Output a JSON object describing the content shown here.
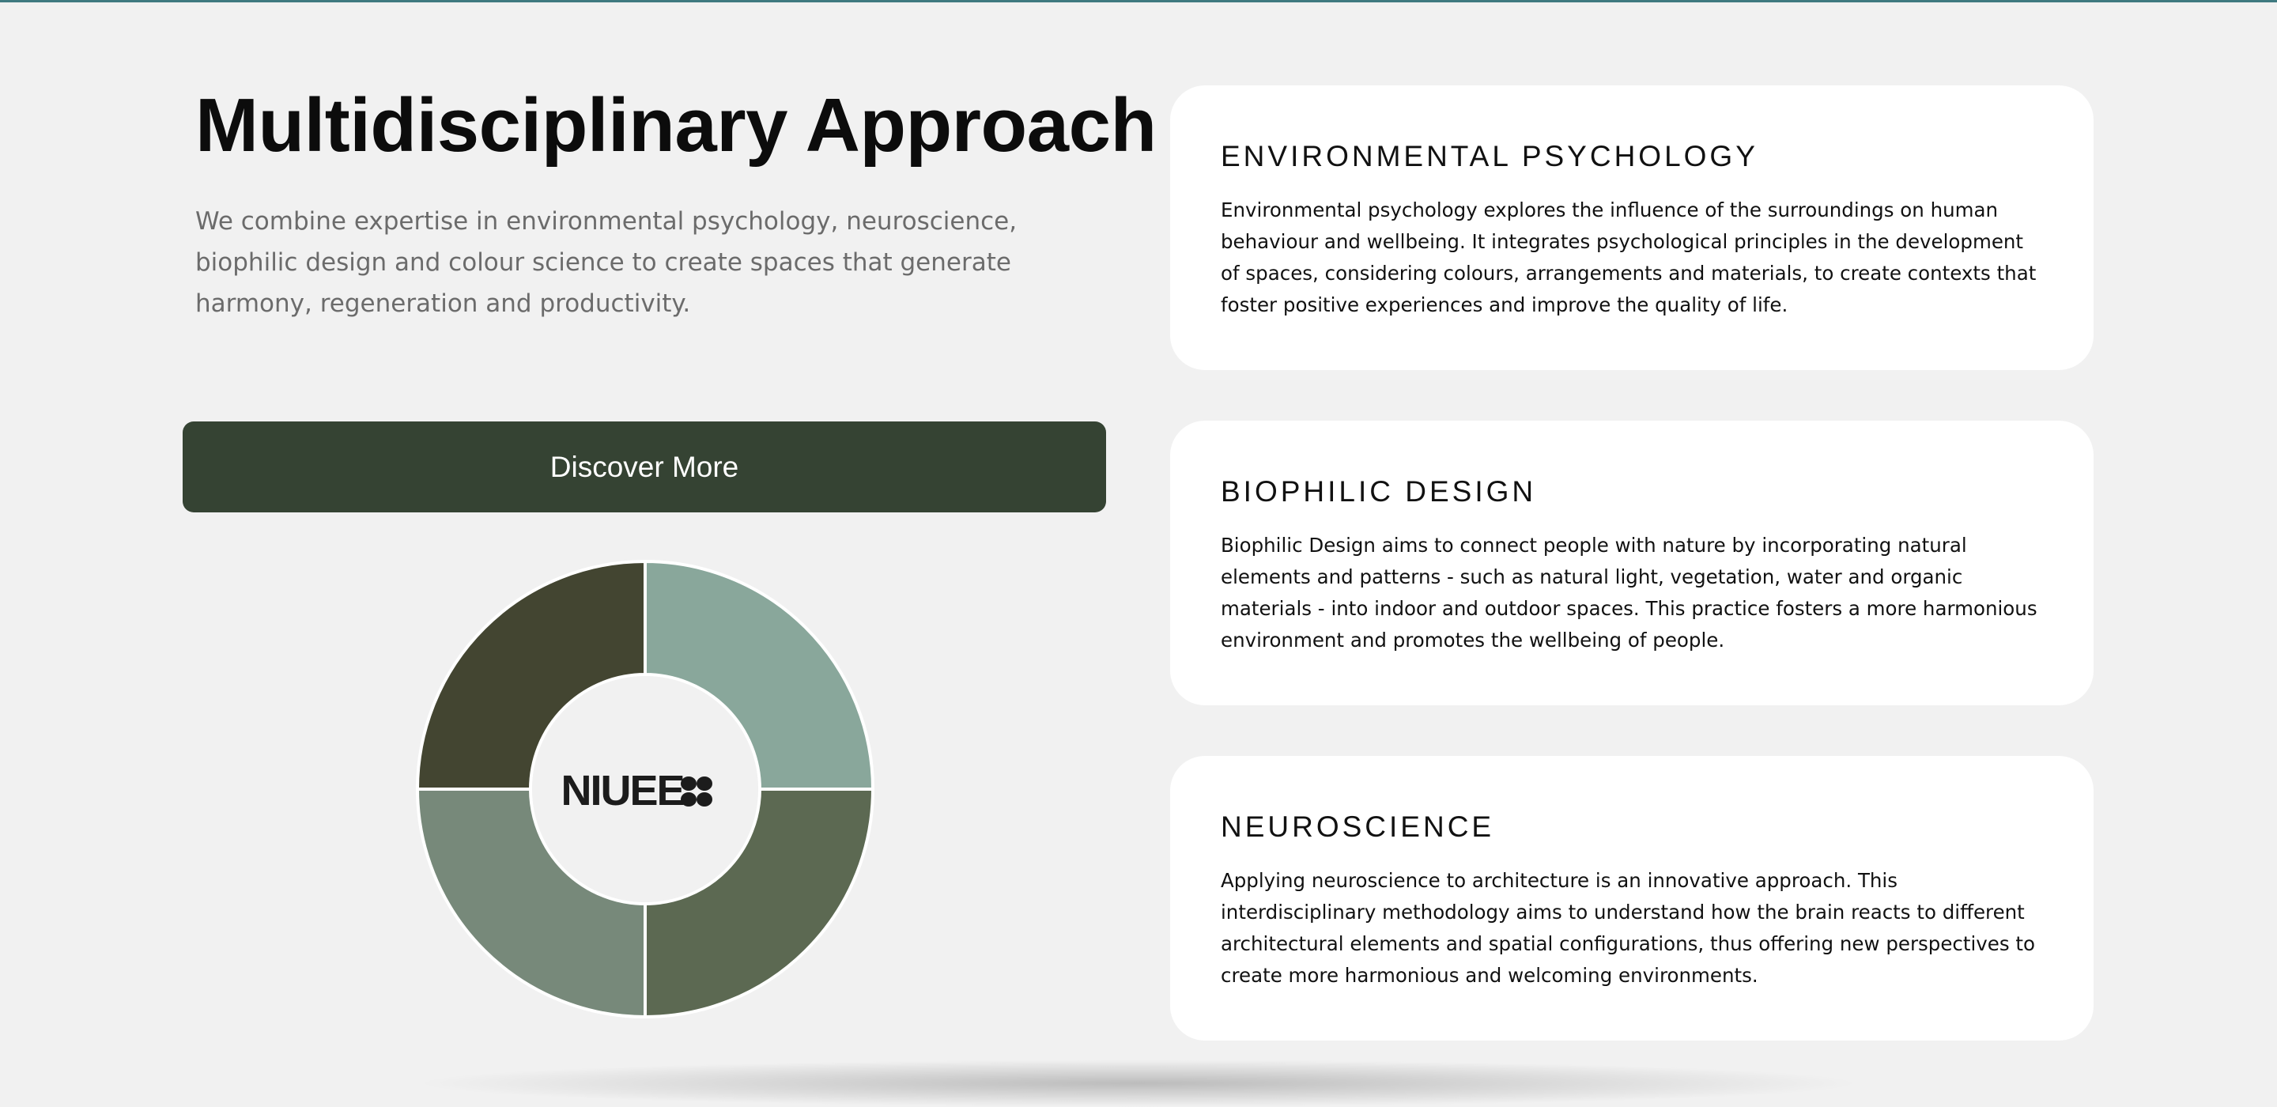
{
  "header": {
    "title": "Multidisciplinary Approach",
    "intro": "We combine expertise in environmental psychology, neuroscience, biophilic design and colour science to create spaces that generate harmony, regeneration and productivity."
  },
  "cta": {
    "label": "Discover More"
  },
  "diagram": {
    "logo_text": "NIUEE",
    "segments": [
      {
        "position": "top-right",
        "color": "#89a79b"
      },
      {
        "position": "bottom-right",
        "color": "#5c6952"
      },
      {
        "position": "bottom-left",
        "color": "#77897a"
      },
      {
        "position": "top-left",
        "color": "#434531"
      }
    ]
  },
  "cards": [
    {
      "title": "ENVIRONMENTAL PSYCHOLOGY",
      "text": "Environmental psychology explores the influence of the surroundings on human behaviour and wellbeing. It integrates psychological principles in the development of spaces, considering colours, arrangements and materials, to create contexts that foster positive experiences and improve the quality of life."
    },
    {
      "title": "BIOPHILIC DESIGN",
      "text": "Biophilic Design aims to connect people with nature by incorporating natural elements and patterns - such as natural light, vegetation, water and organic materials - into indoor and outdoor spaces. This practice fosters a more harmonious environment and promotes the wellbeing of people."
    },
    {
      "title": "NEUROSCIENCE",
      "text": "Applying neuroscience to architecture is an innovative approach. This interdisciplinary methodology aims to understand how the brain reacts to different architectural elements and spatial configurations, thus offering new perspectives to create more harmonious and welcoming environments."
    }
  ]
}
